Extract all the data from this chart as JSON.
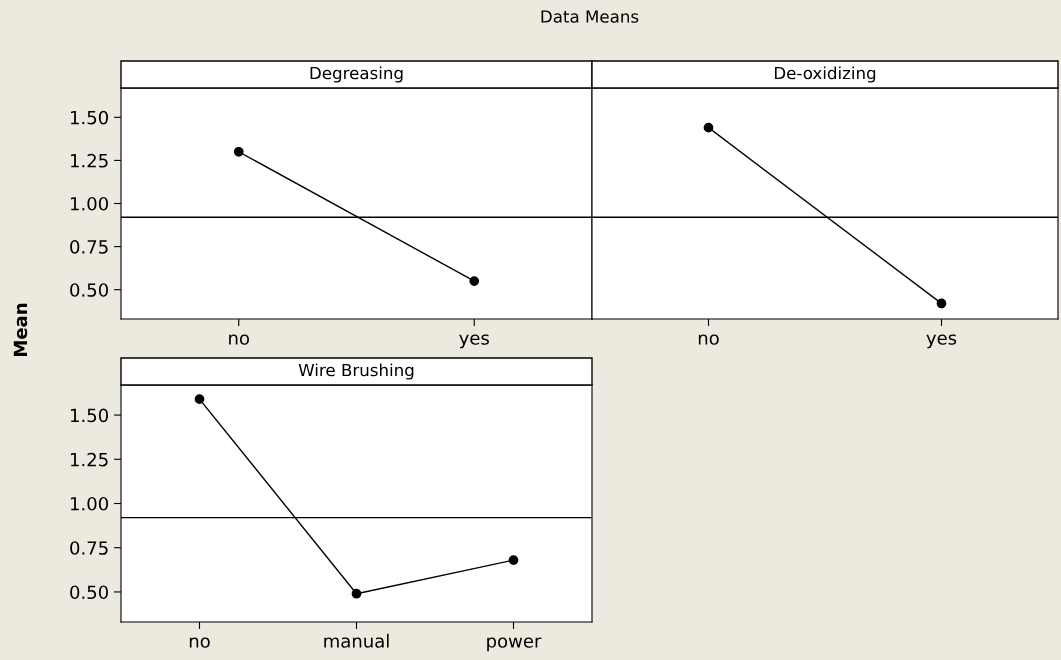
{
  "chart_data": [
    {
      "type": "line",
      "title": "Degreasing",
      "ylabel": "Mean",
      "annotations": [
        "Data Means"
      ],
      "categories": [
        "no",
        "yes"
      ],
      "values": [
        1.3,
        0.55
      ],
      "color": "#000000",
      "marker": "circle",
      "ylim": [
        0.33,
        1.67
      ],
      "yticks": [
        {
          "value": 0.5,
          "label": "0.50"
        },
        {
          "value": 0.75,
          "label": "0.75"
        },
        {
          "value": 1.0,
          "label": "1.00"
        },
        {
          "value": 1.25,
          "label": "1.25"
        },
        {
          "value": 1.5,
          "label": "1.50"
        }
      ],
      "ref_lines": [
        {
          "axis": "y",
          "value": 0.92
        }
      ],
      "grid": false
    },
    {
      "type": "line",
      "title": "De-oxidizing",
      "categories": [
        "no",
        "yes"
      ],
      "values": [
        1.44,
        0.42
      ],
      "color": "#000000",
      "marker": "circle",
      "ylim": [
        0.33,
        1.67
      ],
      "yticks": [
        {
          "value": 0.5,
          "label": null
        },
        {
          "value": 0.75,
          "label": null
        },
        {
          "value": 1.0,
          "label": null
        },
        {
          "value": 1.25,
          "label": null
        },
        {
          "value": 1.5,
          "label": null
        }
      ],
      "tick_labels": "x",
      "ref_lines": [
        {
          "axis": "y",
          "value": 0.92
        }
      ],
      "grid": false
    },
    {
      "type": "line",
      "title": "Wire Brushing",
      "categories": [
        "no",
        "manual",
        "power"
      ],
      "values": [
        1.59,
        0.49,
        0.68
      ],
      "color": "#000000",
      "marker": "circle",
      "ylim": [
        0.33,
        1.67
      ],
      "yticks": [
        {
          "value": 0.5,
          "label": "0.50"
        },
        {
          "value": 0.75,
          "label": "0.75"
        },
        {
          "value": 1.0,
          "label": "1.00"
        },
        {
          "value": 1.25,
          "label": "1.25"
        },
        {
          "value": 1.5,
          "label": "1.50"
        }
      ],
      "ref_lines": [
        {
          "axis": "y",
          "value": 0.92
        }
      ],
      "grid": false
    }
  ]
}
